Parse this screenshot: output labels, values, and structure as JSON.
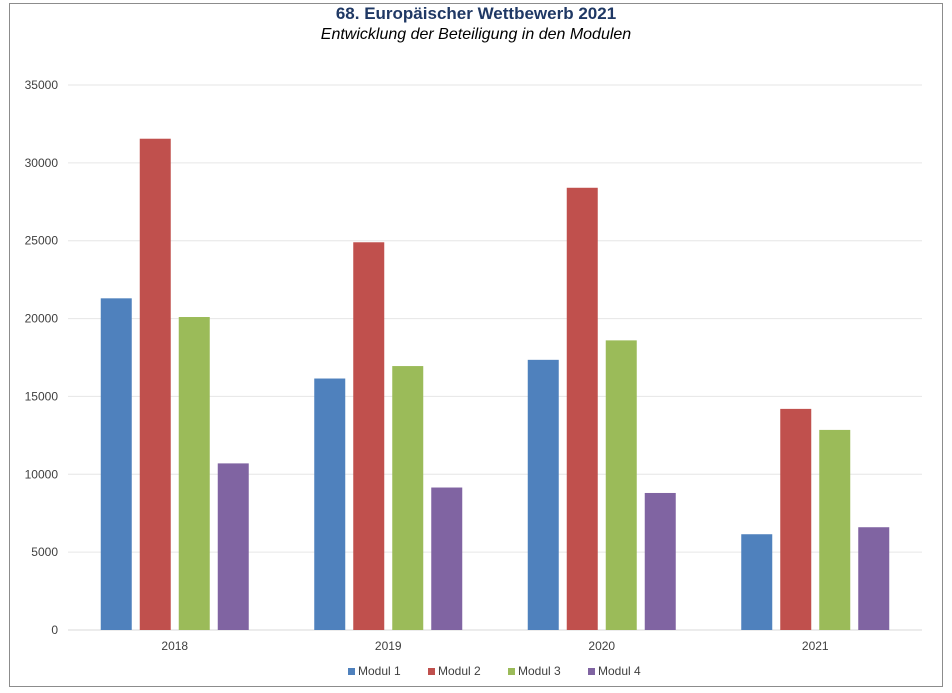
{
  "chart_data": {
    "type": "bar",
    "title": "68. Europäischer Wettbewerb 2021",
    "subtitle": "Entwicklung der Beteiligung in den Modulen",
    "xlabel": "",
    "ylabel": "",
    "categories": [
      "2018",
      "2019",
      "2020",
      "2021"
    ],
    "ylim": [
      0,
      35000
    ],
    "yticks": [
      0,
      5000,
      10000,
      15000,
      20000,
      25000,
      30000,
      35000
    ],
    "grid": true,
    "legend_position": "bottom",
    "series": [
      {
        "name": "Modul 1",
        "color": "#4f81bd",
        "values": [
          21300,
          16150,
          17350,
          6150
        ]
      },
      {
        "name": "Modul 2",
        "color": "#c0504d",
        "values": [
          31550,
          24900,
          28400,
          14200
        ]
      },
      {
        "name": "Modul 3",
        "color": "#9bbb59",
        "values": [
          20100,
          16950,
          18600,
          12850
        ]
      },
      {
        "name": "Modul 4",
        "color": "#8064a2",
        "values": [
          10700,
          9150,
          8800,
          6600
        ]
      }
    ]
  }
}
